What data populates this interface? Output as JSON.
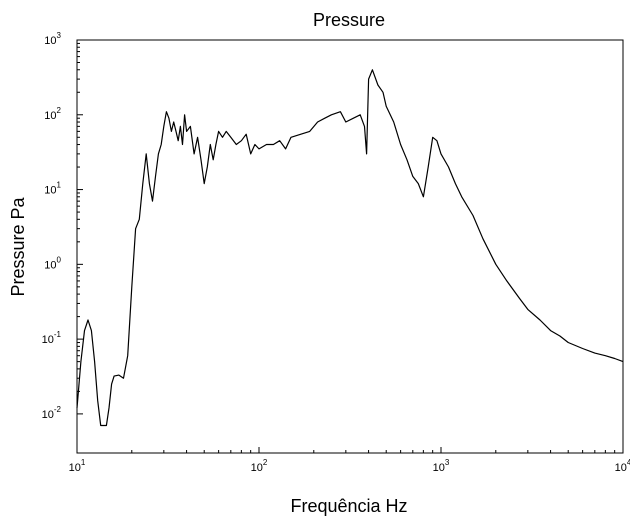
{
  "chart_data": {
    "type": "line",
    "title": "Pressure",
    "xlabel": "Frequência Hz",
    "ylabel": "Pressure Pa",
    "xscale": "log",
    "yscale": "log",
    "xlim": [
      10,
      10000
    ],
    "ylim": [
      0.003,
      1000
    ],
    "grid": false,
    "xticks": [
      {
        "base": "10",
        "exp": "1",
        "value": 10
      },
      {
        "base": "10",
        "exp": "2",
        "value": 100
      },
      {
        "base": "10",
        "exp": "3",
        "value": 1000
      },
      {
        "base": "10",
        "exp": "4",
        "value": 10000
      }
    ],
    "yticks": [
      {
        "base": "10",
        "exp": "-2",
        "value": 0.01
      },
      {
        "base": "10",
        "exp": "-1",
        "value": 0.1
      },
      {
        "base": "10",
        "exp": "0",
        "value": 1
      },
      {
        "base": "10",
        "exp": "1",
        "value": 10
      },
      {
        "base": "10",
        "exp": "2",
        "value": 100
      },
      {
        "base": "10",
        "exp": "3",
        "value": 1000
      }
    ],
    "series": [
      {
        "color": "#000000",
        "x": [
          10,
          10.5,
          11,
          11.5,
          12,
          12.5,
          13,
          13.5,
          14,
          14.5,
          15,
          15.5,
          16,
          17,
          18,
          19,
          20,
          21,
          22,
          23,
          24,
          25,
          26,
          27,
          28,
          29,
          30,
          31,
          32,
          33,
          34,
          35,
          36,
          37,
          38,
          39,
          40,
          42,
          44,
          46,
          48,
          50,
          52,
          54,
          56,
          58,
          60,
          63,
          66,
          70,
          75,
          80,
          85,
          90,
          95,
          100,
          110,
          120,
          130,
          140,
          150,
          170,
          190,
          210,
          230,
          250,
          280,
          300,
          330,
          360,
          380,
          390,
          400,
          420,
          450,
          480,
          500,
          550,
          600,
          650,
          700,
          750,
          800,
          850,
          900,
          950,
          1000,
          1100,
          1200,
          1300,
          1500,
          1700,
          2000,
          2300,
          2700,
          3000,
          3500,
          4000,
          4500,
          5000,
          6000,
          7000,
          8000,
          9000,
          10000
        ],
        "y": [
          0.012,
          0.05,
          0.13,
          0.18,
          0.13,
          0.05,
          0.015,
          0.007,
          0.007,
          0.007,
          0.012,
          0.025,
          0.032,
          0.033,
          0.03,
          0.06,
          0.5,
          3,
          4,
          12,
          30,
          12,
          7,
          15,
          30,
          40,
          70,
          110,
          90,
          60,
          80,
          60,
          45,
          70,
          40,
          100,
          60,
          70,
          30,
          50,
          25,
          12,
          20,
          40,
          25,
          40,
          60,
          50,
          60,
          50,
          40,
          45,
          55,
          30,
          40,
          35,
          40,
          40,
          45,
          35,
          50,
          55,
          60,
          80,
          90,
          100,
          110,
          80,
          90,
          100,
          70,
          30,
          300,
          400,
          250,
          200,
          130,
          80,
          40,
          25,
          15,
          12,
          8,
          20,
          50,
          45,
          30,
          20,
          12,
          8,
          4.5,
          2.2,
          1,
          0.6,
          0.35,
          0.25,
          0.18,
          0.13,
          0.11,
          0.09,
          0.075,
          0.065,
          0.06,
          0.055,
          0.05
        ]
      }
    ]
  }
}
